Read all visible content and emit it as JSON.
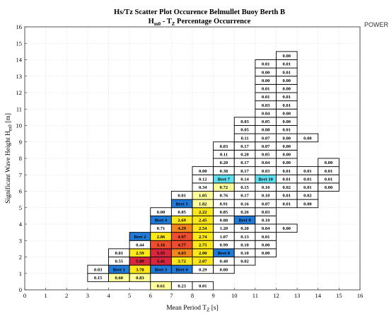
{
  "chart_data": {
    "type": "heatmap",
    "title": "Hs/Tz Scatter Plot Occurence Belmullet Buoy Berth B",
    "subtitle": "H_m0 - T_Z Percentage Occurrence",
    "xlabel": "Mean Period T_Z [s]",
    "ylabel": "Significant Wave Height H_m0 [m]",
    "corner_label": "POWER",
    "xlim": [
      0,
      16
    ],
    "ylim": [
      0,
      16
    ],
    "grid": true,
    "x_ticks": [
      "0",
      "1",
      "2",
      "3",
      "4",
      "5",
      "6",
      "7",
      "8",
      "9",
      "10",
      "11",
      "12",
      "13",
      "14",
      "15",
      "16"
    ],
    "y_ticks": [
      "0",
      "1",
      "2",
      "3",
      "4",
      "5",
      "6",
      "7",
      "8",
      "9",
      "10",
      "11",
      "12",
      "13",
      "14",
      "15",
      "16"
    ],
    "colors": {
      "deep_red": "#d7263d",
      "red": "#ee4d2e",
      "orange": "#f4841c",
      "yellow": "#ffe81a",
      "light_yellow": "#ffff9e",
      "bret_blue": "#1f7ad8",
      "bret_cyan": "#5fe0f0"
    },
    "cells": [
      {
        "x": 3,
        "y": 0.5,
        "label": "0.15"
      },
      {
        "x": 4,
        "y": 0.5,
        "label": "0.60",
        "color": "light_yellow"
      },
      {
        "x": 5,
        "y": 0.5,
        "label": "0.83",
        "color": "light_yellow"
      },
      {
        "x": 6,
        "y": 0,
        "label": "0.61",
        "color": "light_yellow"
      },
      {
        "x": 7,
        "y": 0,
        "label": "0.23"
      },
      {
        "x": 8,
        "y": 0,
        "label": "0.01"
      },
      {
        "x": 3,
        "y": 1,
        "label": "0.03"
      },
      {
        "x": 4,
        "y": 1,
        "label": "Bret 1",
        "color": "bret_blue"
      },
      {
        "x": 5,
        "y": 1,
        "label": "3.78",
        "color": "yellow"
      },
      {
        "x": 6,
        "y": 1,
        "label": "Bret 3",
        "color": "bret_blue"
      },
      {
        "x": 7,
        "y": 1,
        "label": "Bret 6",
        "color": "bret_blue"
      },
      {
        "x": 8,
        "y": 1,
        "label": "0.29"
      },
      {
        "x": 9,
        "y": 1,
        "label": "0.00"
      },
      {
        "x": 4,
        "y": 1.5,
        "label": "0.55"
      },
      {
        "x": 5,
        "y": 1.5,
        "label": "5.09",
        "color": "deep_red"
      },
      {
        "x": 6,
        "y": 1.5,
        "label": "5.41",
        "color": "deep_red"
      },
      {
        "x": 7,
        "y": 1.5,
        "label": "3.72",
        "color": "yellow"
      },
      {
        "x": 8,
        "y": 1.5,
        "label": "2.07",
        "color": "yellow"
      },
      {
        "x": 9,
        "y": 1.5,
        "label": "0.40"
      },
      {
        "x": 10,
        "y": 1.5,
        "label": "0.02"
      },
      {
        "x": 4,
        "y": 2,
        "label": "0.01"
      },
      {
        "x": 5,
        "y": 2,
        "label": "2.59",
        "color": "yellow"
      },
      {
        "x": 6,
        "y": 2,
        "label": "5.55",
        "color": "deep_red"
      },
      {
        "x": 7,
        "y": 2,
        "label": "4.03",
        "color": "orange"
      },
      {
        "x": 8,
        "y": 2,
        "label": "2.00",
        "color": "yellow"
      },
      {
        "x": 9,
        "y": 2,
        "label": "Bret 8",
        "color": "bret_blue"
      },
      {
        "x": 10,
        "y": 2,
        "label": "0.10"
      },
      {
        "x": 11,
        "y": 2,
        "label": "0.00"
      },
      {
        "x": 5,
        "y": 2.5,
        "label": "0.44"
      },
      {
        "x": 6,
        "y": 2.5,
        "label": "5.16",
        "color": "red"
      },
      {
        "x": 7,
        "y": 2.5,
        "label": "4.77",
        "color": "red"
      },
      {
        "x": 8,
        "y": 2.5,
        "label": "2.75",
        "color": "yellow"
      },
      {
        "x": 9,
        "y": 2.5,
        "label": "0.99"
      },
      {
        "x": 10,
        "y": 2.5,
        "label": "0.10"
      },
      {
        "x": 11,
        "y": 2.5,
        "label": "0.00"
      },
      {
        "x": 5,
        "y": 3,
        "label": "Bret 2",
        "color": "bret_blue"
      },
      {
        "x": 6,
        "y": 3,
        "label": "2.86",
        "color": "yellow"
      },
      {
        "x": 7,
        "y": 3,
        "label": "4.97",
        "color": "red"
      },
      {
        "x": 8,
        "y": 3,
        "label": "2.74",
        "color": "yellow"
      },
      {
        "x": 9,
        "y": 3,
        "label": "1.07"
      },
      {
        "x": 10,
        "y": 3,
        "label": "0.13"
      },
      {
        "x": 11,
        "y": 3,
        "label": "0.01"
      },
      {
        "x": 6,
        "y": 3.5,
        "label": "0.71"
      },
      {
        "x": 7,
        "y": 3.5,
        "label": "4.29",
        "color": "orange"
      },
      {
        "x": 8,
        "y": 3.5,
        "label": "2.54",
        "color": "yellow"
      },
      {
        "x": 9,
        "y": 3.5,
        "label": "1.20"
      },
      {
        "x": 10,
        "y": 3.5,
        "label": "0.20"
      },
      {
        "x": 11,
        "y": 3.5,
        "label": "0.04"
      },
      {
        "x": 12,
        "y": 3.5,
        "label": "0.00"
      },
      {
        "x": 6,
        "y": 4,
        "label": "Bret 4",
        "color": "bret_blue"
      },
      {
        "x": 7,
        "y": 4,
        "label": "2.69",
        "color": "yellow"
      },
      {
        "x": 8,
        "y": 4,
        "label": "2.45",
        "color": "yellow"
      },
      {
        "x": 9,
        "y": 4,
        "label": "0.88"
      },
      {
        "x": 10,
        "y": 4,
        "label": "Bret 9",
        "color": "bret_blue"
      },
      {
        "x": 11,
        "y": 4,
        "label": "0.10"
      },
      {
        "x": 6,
        "y": 4.5,
        "label": "0.00"
      },
      {
        "x": 7,
        "y": 4.5,
        "label": "0.85"
      },
      {
        "x": 8,
        "y": 4.5,
        "label": "2.22",
        "color": "yellow"
      },
      {
        "x": 9,
        "y": 4.5,
        "label": "0.85"
      },
      {
        "x": 10,
        "y": 4.5,
        "label": "0.26"
      },
      {
        "x": 11,
        "y": 4.5,
        "label": "0.03"
      },
      {
        "x": 7,
        "y": 5,
        "label": "Bret 5",
        "color": "bret_blue"
      },
      {
        "x": 8,
        "y": 5,
        "label": "1.82",
        "color": "light_yellow"
      },
      {
        "x": 9,
        "y": 5,
        "label": "0.91"
      },
      {
        "x": 10,
        "y": 5,
        "label": "0.16"
      },
      {
        "x": 11,
        "y": 5,
        "label": "0.07"
      },
      {
        "x": 12,
        "y": 5,
        "label": "0.01"
      },
      {
        "x": 13,
        "y": 5,
        "label": "0.00"
      },
      {
        "x": 7,
        "y": 5.5,
        "label": "0.01"
      },
      {
        "x": 8,
        "y": 5.5,
        "label": "1.05",
        "color": "light_yellow"
      },
      {
        "x": 9,
        "y": 5.5,
        "label": "0.76"
      },
      {
        "x": 10,
        "y": 5.5,
        "label": "0.17"
      },
      {
        "x": 11,
        "y": 5.5,
        "label": "0.10"
      },
      {
        "x": 12,
        "y": 5.5,
        "label": "0.01"
      },
      {
        "x": 13,
        "y": 5.5,
        "label": "0.02"
      },
      {
        "x": 8,
        "y": 6,
        "label": "0.34"
      },
      {
        "x": 9,
        "y": 6,
        "label": "0.72",
        "color": "light_yellow"
      },
      {
        "x": 10,
        "y": 6,
        "label": "0.15"
      },
      {
        "x": 11,
        "y": 6,
        "label": "0.10"
      },
      {
        "x": 12,
        "y": 6,
        "label": "0.02"
      },
      {
        "x": 13,
        "y": 6,
        "label": "0.01"
      },
      {
        "x": 14,
        "y": 6,
        "label": "0.00"
      },
      {
        "x": 8,
        "y": 6.5,
        "label": "0.12"
      },
      {
        "x": 9,
        "y": 6.5,
        "label": "Bret 7",
        "color": "bret_cyan"
      },
      {
        "x": 10,
        "y": 6.5,
        "label": "0.14"
      },
      {
        "x": 11,
        "y": 6.5,
        "label": "Bret 10",
        "color": "bret_cyan"
      },
      {
        "x": 12,
        "y": 6.5,
        "label": "0.01"
      },
      {
        "x": 13,
        "y": 6.5,
        "label": "0.01"
      },
      {
        "x": 14,
        "y": 6.5,
        "label": "0.01"
      },
      {
        "x": 8,
        "y": 7,
        "label": "0.00"
      },
      {
        "x": 9,
        "y": 7,
        "label": "0.38"
      },
      {
        "x": 10,
        "y": 7,
        "label": "0.17"
      },
      {
        "x": 11,
        "y": 7,
        "label": "0.03"
      },
      {
        "x": 12,
        "y": 7,
        "label": "0.01"
      },
      {
        "x": 13,
        "y": 7,
        "label": "0.01"
      },
      {
        "x": 14,
        "y": 7,
        "label": "0.01"
      },
      {
        "x": 9,
        "y": 7.5,
        "label": "0.20"
      },
      {
        "x": 10,
        "y": 7.5,
        "label": "0.17"
      },
      {
        "x": 11,
        "y": 7.5,
        "label": "0.04"
      },
      {
        "x": 12,
        "y": 7.5,
        "label": "0.00"
      },
      {
        "x": 14,
        "y": 7.5,
        "label": "0.00"
      },
      {
        "x": 9,
        "y": 8,
        "label": "0.11"
      },
      {
        "x": 10,
        "y": 8,
        "label": "0.20"
      },
      {
        "x": 11,
        "y": 8,
        "label": "0.05"
      },
      {
        "x": 12,
        "y": 8,
        "label": "0.00"
      },
      {
        "x": 9,
        "y": 8.5,
        "label": "0.03"
      },
      {
        "x": 10,
        "y": 8.5,
        "label": "0.17"
      },
      {
        "x": 11,
        "y": 8.5,
        "label": "0.07"
      },
      {
        "x": 12,
        "y": 8.5,
        "label": "0.00"
      },
      {
        "x": 10,
        "y": 9,
        "label": "0.11"
      },
      {
        "x": 11,
        "y": 9,
        "label": "0.07"
      },
      {
        "x": 12,
        "y": 9,
        "label": "0.00"
      },
      {
        "x": 13,
        "y": 9,
        "label": "0.00"
      },
      {
        "x": 10,
        "y": 9.5,
        "label": "0.05"
      },
      {
        "x": 11,
        "y": 9.5,
        "label": "0.08"
      },
      {
        "x": 12,
        "y": 9.5,
        "label": "0.01"
      },
      {
        "x": 10,
        "y": 10,
        "label": "0.03"
      },
      {
        "x": 11,
        "y": 10,
        "label": "0.05"
      },
      {
        "x": 12,
        "y": 10,
        "label": "0.00"
      },
      {
        "x": 11,
        "y": 10.5,
        "label": "0.04"
      },
      {
        "x": 12,
        "y": 10.5,
        "label": "0.00"
      },
      {
        "x": 11,
        "y": 11,
        "label": "0.03"
      },
      {
        "x": 12,
        "y": 11,
        "label": "0.01"
      },
      {
        "x": 11,
        "y": 11.5,
        "label": "0.01"
      },
      {
        "x": 12,
        "y": 11.5,
        "label": "0.01"
      },
      {
        "x": 11,
        "y": 12,
        "label": "0.01"
      },
      {
        "x": 12,
        "y": 12,
        "label": "0.00"
      },
      {
        "x": 11,
        "y": 12.5,
        "label": "0.00"
      },
      {
        "x": 12,
        "y": 12.5,
        "label": "0.00"
      },
      {
        "x": 11,
        "y": 13,
        "label": "0.00"
      },
      {
        "x": 12,
        "y": 13,
        "label": "0.01"
      },
      {
        "x": 11,
        "y": 13.5,
        "label": "0.01"
      },
      {
        "x": 12,
        "y": 13.5,
        "label": "0.01"
      },
      {
        "x": 12,
        "y": 14,
        "label": "0.00"
      }
    ]
  }
}
